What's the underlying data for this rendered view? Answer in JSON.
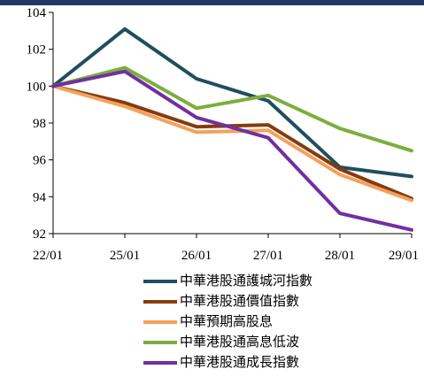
{
  "chart_data": {
    "type": "line",
    "categories": [
      "22/01",
      "25/01",
      "26/01",
      "27/01",
      "28/01",
      "29/01"
    ],
    "ylim": [
      92,
      104
    ],
    "yticks": [
      92,
      94,
      96,
      98,
      100,
      102,
      104
    ],
    "grid": false,
    "legend_position": "bottom",
    "top_band_color": "#1f3864",
    "series": [
      {
        "name": "中華港股通護城河指數",
        "color": "#1f4e5f",
        "values": [
          100,
          103.1,
          100.4,
          99.2,
          95.6,
          95.1
        ]
      },
      {
        "name": "中華港股通價值指數",
        "color": "#843c0c",
        "values": [
          100,
          99.1,
          97.8,
          97.9,
          95.5,
          93.9
        ]
      },
      {
        "name": "中華預期高股息",
        "color": "#f4a15d",
        "values": [
          100,
          98.9,
          97.5,
          97.6,
          95.2,
          93.8
        ]
      },
      {
        "name": "中華港股通高息低波",
        "color": "#7ead3f",
        "values": [
          100,
          101.0,
          98.8,
          99.5,
          97.7,
          96.5
        ]
      },
      {
        "name": "中華港股通成長指數",
        "color": "#7030a0",
        "values": [
          100,
          100.8,
          98.3,
          97.2,
          93.1,
          92.2
        ]
      }
    ]
  }
}
